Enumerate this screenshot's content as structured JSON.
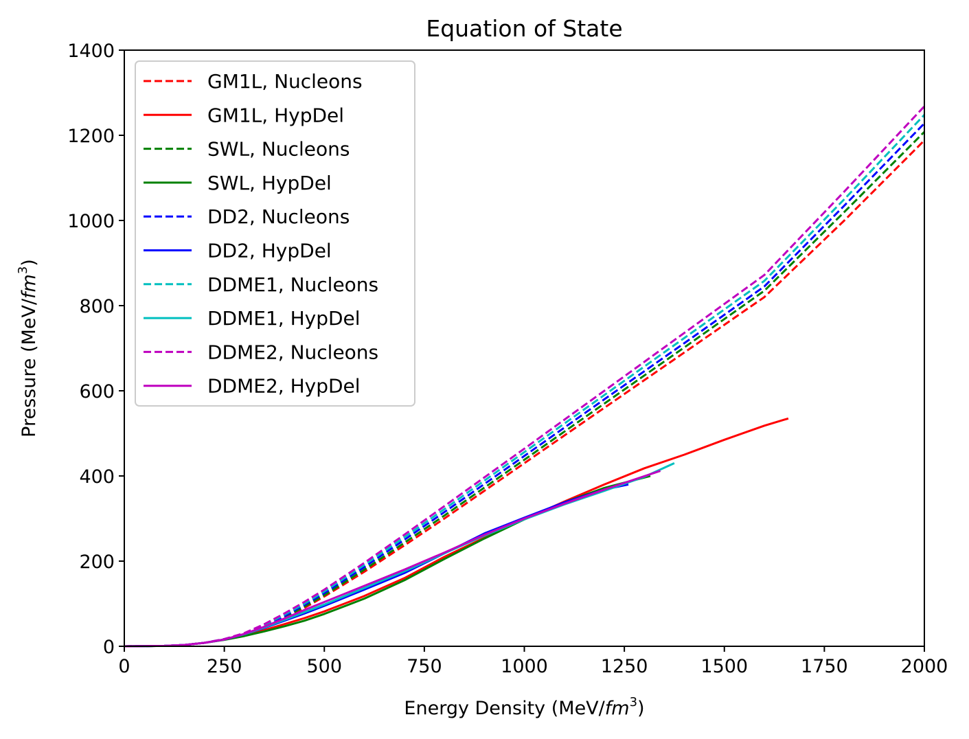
{
  "chart_data": {
    "type": "line",
    "title": "Equation of State",
    "xlabel_main": "Energy Density (MeV/",
    "xlabel_var": "fm",
    "xlabel_sup": "3",
    "xlabel_close": ")",
    "ylabel_main": "Pressure (MeV/",
    "ylabel_var": "fm",
    "ylabel_sup": "3",
    "ylabel_close": ")",
    "xlim": [
      0,
      2000
    ],
    "ylim": [
      0,
      1400
    ],
    "xticks": [
      0,
      250,
      500,
      750,
      1000,
      1250,
      1500,
      1750,
      2000
    ],
    "xtick_labels": [
      "0",
      "250",
      "500",
      "750",
      "1000",
      "1250",
      "1500",
      "1750",
      "2000"
    ],
    "yticks": [
      0,
      200,
      400,
      600,
      800,
      1000,
      1200,
      1400
    ],
    "ytick_labels": [
      "0",
      "200",
      "400",
      "600",
      "800",
      "1000",
      "1200",
      "1400"
    ],
    "grid": false,
    "legend_position": "upper-left",
    "series": [
      {
        "name": "GM1L, Nucleons",
        "color": "#ff0000",
        "style": "dashed",
        "x": [
          0,
          100,
          150,
          200,
          250,
          300,
          350,
          400,
          450,
          500,
          600,
          700,
          800,
          1000,
          1200,
          1400,
          1600,
          1800,
          2000
        ],
        "y": [
          0,
          1,
          3,
          8,
          16,
          28,
          45,
          66,
          90,
          117,
          175,
          237,
          300,
          430,
          560,
          690,
          820,
          1000,
          1188
        ]
      },
      {
        "name": "GM1L, HypDel",
        "color": "#ff0000",
        "style": "solid",
        "x": [
          0,
          100,
          150,
          200,
          250,
          300,
          350,
          400,
          450,
          500,
          600,
          700,
          800,
          900,
          1000,
          1100,
          1200,
          1300,
          1400,
          1500,
          1600,
          1660
        ],
        "y": [
          0,
          1,
          3,
          8,
          16,
          26,
          38,
          52,
          66,
          82,
          118,
          160,
          210,
          255,
          298,
          340,
          380,
          418,
          450,
          485,
          518,
          535
        ]
      },
      {
        "name": "SWL, Nucleons",
        "color": "#008000",
        "style": "dashed",
        "x": [
          0,
          100,
          150,
          200,
          250,
          300,
          350,
          400,
          450,
          500,
          600,
          700,
          800,
          1000,
          1200,
          1400,
          1600,
          1800,
          2000
        ],
        "y": [
          0,
          1,
          3,
          8,
          16,
          28,
          46,
          68,
          93,
          120,
          180,
          243,
          307,
          438,
          570,
          702,
          835,
          1020,
          1208
        ]
      },
      {
        "name": "SWL, HypDel",
        "color": "#008000",
        "style": "solid",
        "x": [
          0,
          100,
          150,
          200,
          250,
          300,
          350,
          400,
          450,
          500,
          600,
          700,
          800,
          900,
          1000,
          1100,
          1200,
          1315
        ],
        "y": [
          0,
          1,
          3,
          8,
          15,
          24,
          35,
          47,
          60,
          76,
          112,
          155,
          205,
          253,
          298,
          338,
          372,
          400
        ]
      },
      {
        "name": "DD2, Nucleons",
        "color": "#0000ff",
        "style": "dashed",
        "x": [
          0,
          100,
          150,
          200,
          250,
          300,
          350,
          400,
          450,
          500,
          600,
          700,
          800,
          1000,
          1200,
          1400,
          1600,
          1800,
          2000
        ],
        "y": [
          0,
          1,
          3,
          8,
          16,
          29,
          48,
          71,
          97,
          125,
          186,
          250,
          315,
          447,
          580,
          712,
          845,
          1035,
          1228
        ]
      },
      {
        "name": "DD2, HypDel",
        "color": "#0000ff",
        "style": "solid",
        "x": [
          0,
          100,
          150,
          200,
          250,
          300,
          350,
          400,
          450,
          500,
          600,
          700,
          800,
          900,
          1000,
          1100,
          1200,
          1260
        ],
        "y": [
          0,
          1,
          3,
          8,
          16,
          28,
          43,
          60,
          77,
          95,
          133,
          172,
          218,
          265,
          302,
          338,
          368,
          380
        ]
      },
      {
        "name": "DDME1, Nucleons",
        "color": "#00bfbf",
        "style": "dashed",
        "x": [
          0,
          100,
          150,
          200,
          250,
          300,
          350,
          400,
          450,
          500,
          600,
          700,
          800,
          1000,
          1200,
          1400,
          1600,
          1800,
          2000
        ],
        "y": [
          0,
          1,
          3,
          8,
          17,
          30,
          50,
          74,
          100,
          129,
          191,
          256,
          322,
          456,
          590,
          724,
          858,
          1050,
          1248
        ]
      },
      {
        "name": "DDME1, HypDel",
        "color": "#00bfbf",
        "style": "solid",
        "x": [
          0,
          100,
          150,
          200,
          250,
          300,
          350,
          400,
          450,
          500,
          600,
          700,
          800,
          900,
          1000,
          1100,
          1200,
          1300,
          1375
        ],
        "y": [
          0,
          1,
          3,
          8,
          16,
          28,
          44,
          62,
          80,
          98,
          137,
          176,
          218,
          260,
          298,
          333,
          365,
          398,
          430
        ]
      },
      {
        "name": "DDME2, Nucleons",
        "color": "#bf00bf",
        "style": "dashed",
        "x": [
          0,
          100,
          150,
          200,
          250,
          300,
          350,
          400,
          450,
          500,
          600,
          700,
          800,
          1000,
          1200,
          1400,
          1600,
          1800,
          2000
        ],
        "y": [
          0,
          1,
          3,
          8,
          17,
          31,
          52,
          77,
          104,
          133,
          196,
          262,
          329,
          464,
          600,
          736,
          872,
          1068,
          1268
        ]
      },
      {
        "name": "DDME2, HypDel",
        "color": "#bf00bf",
        "style": "solid",
        "x": [
          0,
          100,
          150,
          200,
          250,
          300,
          350,
          400,
          450,
          500,
          600,
          700,
          800,
          900,
          1000,
          1100,
          1200,
          1340
        ],
        "y": [
          0,
          1,
          3,
          8,
          16,
          29,
          46,
          65,
          85,
          104,
          142,
          180,
          220,
          262,
          300,
          335,
          368,
          412
        ]
      }
    ]
  }
}
